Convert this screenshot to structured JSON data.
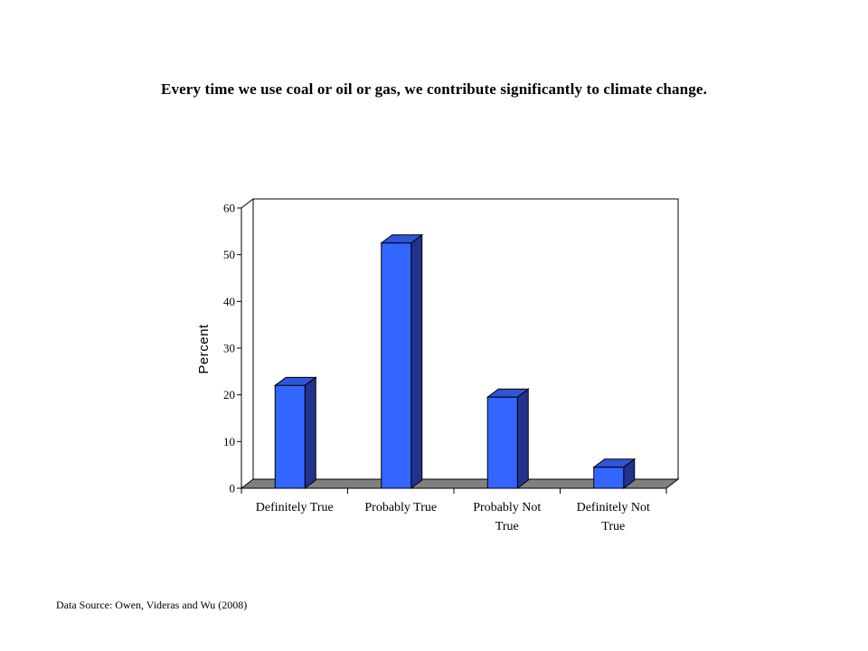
{
  "title": "Every time we use coal or oil or gas, we contribute significantly to climate change.",
  "source": "Data Source: Owen, Videras and Wu (2008)",
  "colors": {
    "bar_front": "#3366ff",
    "bar_side": "#22338f",
    "bar_top": "#2f55d9",
    "floor": "#808080"
  },
  "chart_data": {
    "type": "bar",
    "title": "Every time we use coal or oil or gas, we contribute significantly to climate change.",
    "xlabel": "",
    "ylabel": "Percent",
    "categories": [
      [
        "Definitely True"
      ],
      [
        "Probably True"
      ],
      [
        "Probably Not",
        "True"
      ],
      [
        "Definitely Not",
        "True"
      ]
    ],
    "values": [
      22,
      52.5,
      19.5,
      4.5
    ],
    "ylim": [
      0,
      60
    ],
    "yticks": [
      0,
      10,
      20,
      30,
      40,
      50,
      60
    ],
    "style": "3d",
    "grid": false
  }
}
